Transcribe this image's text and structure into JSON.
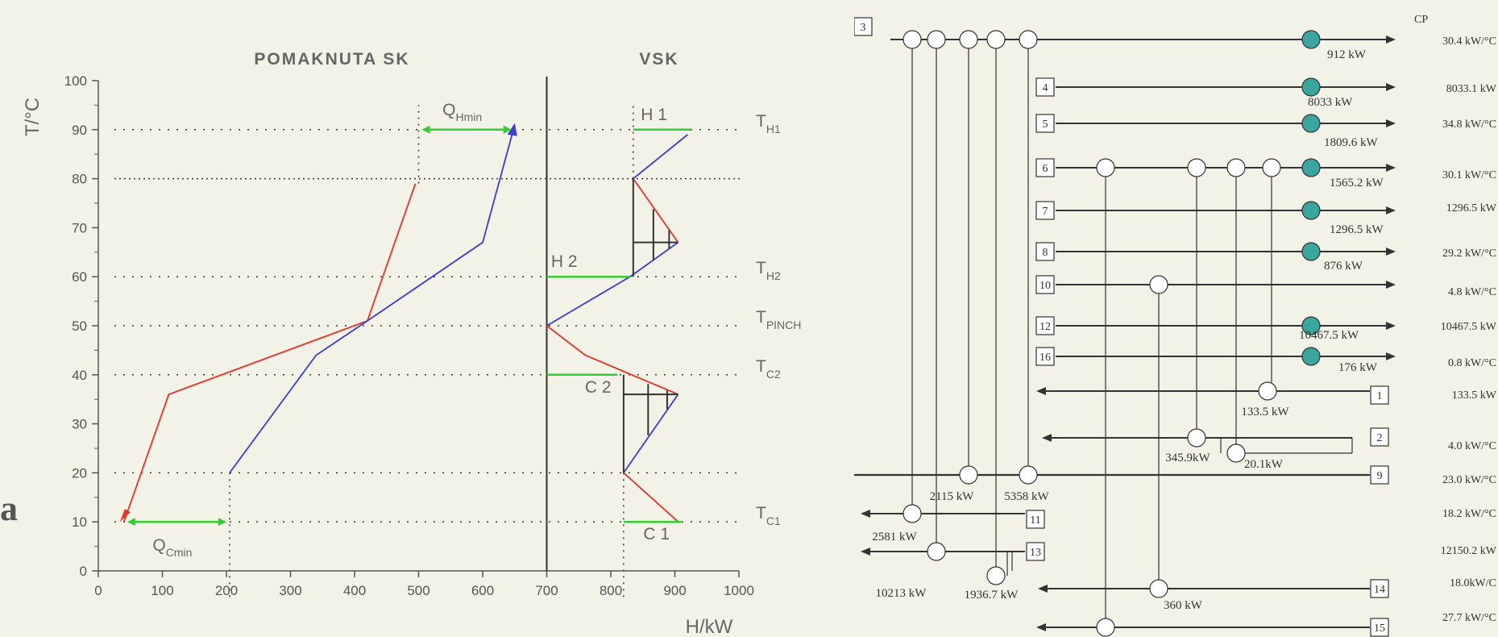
{
  "panel_letter": "a",
  "chart_data": {
    "type": "line",
    "xlabel": "H/kW",
    "ylabel": "T/°C",
    "xlim": [
      0,
      1000
    ],
    "ylim": [
      0,
      100
    ],
    "x_ticks": [
      0,
      100,
      200,
      300,
      400,
      500,
      600,
      700,
      800,
      900,
      1000
    ],
    "y_ticks": [
      0,
      10,
      20,
      30,
      40,
      50,
      60,
      70,
      80,
      90,
      100
    ],
    "section_titles": [
      "POMAKNUTA SK",
      "VSK"
    ],
    "horizontal_levels": [
      10,
      20,
      40,
      50,
      60,
      80,
      90
    ],
    "level_labels": [
      {
        "main": "T",
        "sub": "H1",
        "y": 90
      },
      {
        "main": "T",
        "sub": "H2",
        "y": 60
      },
      {
        "main": "T",
        "sub": "PINCH",
        "y": 50
      },
      {
        "main": "T",
        "sub": "C2",
        "y": 40
      },
      {
        "main": "T",
        "sub": "C1",
        "y": 10
      }
    ],
    "cold_composite": {
      "color": "#e8332a",
      "points": [
        [
          495,
          79
        ],
        [
          420,
          51
        ],
        [
          110,
          36
        ],
        [
          40,
          10
        ]
      ]
    },
    "hot_composite": {
      "color": "#3b3bd6",
      "points": [
        [
          205,
          20
        ],
        [
          340,
          44
        ],
        [
          420,
          51
        ],
        [
          600,
          67
        ],
        [
          650,
          91
        ]
      ]
    },
    "q_hmin": {
      "main": "Q",
      "sub": "Hmin",
      "x1": 500,
      "x2": 650,
      "y": 90
    },
    "q_cmin": {
      "main": "Q",
      "sub": "Cmin",
      "x1": 40,
      "x2": 205,
      "y": 10
    },
    "gcc": {
      "color_upper": "#e8332a",
      "color_lower": "#3b3bd6",
      "points": [
        [
          920,
          89
        ],
        [
          835,
          80
        ],
        [
          905,
          67
        ],
        [
          830,
          60
        ],
        [
          700,
          50
        ],
        [
          760,
          44
        ],
        [
          905,
          36
        ],
        [
          820,
          20
        ],
        [
          905,
          10
        ]
      ]
    },
    "utilities": [
      {
        "name": "H 1",
        "x1": 835,
        "x2": 925,
        "y": 90
      },
      {
        "name": "H 2",
        "x1": 700,
        "x2": 830,
        "y": 60
      },
      {
        "name": "C 2",
        "x1": 700,
        "x2": 810,
        "y": 40
      },
      {
        "name": "C 1",
        "x1": 820,
        "x2": 910,
        "y": 10
      }
    ]
  },
  "grid": {
    "cp_header": "CP",
    "hot_streams": [
      {
        "id": "3",
        "load": "912 kW",
        "cp": "30.4 kW/°C"
      },
      {
        "id": "4",
        "load": "8033 kW",
        "cp": "8033.1 kW"
      },
      {
        "id": "5",
        "load": "1809.6 kW",
        "cp": "34.8 kW/°C"
      },
      {
        "id": "6",
        "load": "1565.2 kW",
        "cp": "30.1 kW/°C"
      },
      {
        "id": "7",
        "load": "1296.5 kW",
        "cp": "1296.5 kW"
      },
      {
        "id": "8",
        "load": "876 kW",
        "cp": "29.2 kW/°C"
      },
      {
        "id": "10",
        "load": "",
        "cp": "4.8 kW/°C"
      },
      {
        "id": "12",
        "load": "10467.5 kW",
        "cp": "10467.5 kW"
      },
      {
        "id": "16",
        "load": "176 kW",
        "cp": "0.8 kW/°C"
      }
    ],
    "cold_streams": [
      {
        "id": "1",
        "cp": "133.5 kW"
      },
      {
        "id": "2",
        "cp": "4.0 kW/°C"
      },
      {
        "id": "9",
        "cp": "23.0 kW/°C"
      },
      {
        "id": "11",
        "cp": "18.2 kW/°C"
      },
      {
        "id": "13",
        "cp": "12150.2 kW"
      },
      {
        "id": "14",
        "cp": "18.0kW/C"
      },
      {
        "id": "15",
        "cp": "27.7 kW/°C"
      }
    ],
    "exchanger_loads": [
      "133.5 kW",
      "345.9kW",
      "20.1kW",
      "2115 kW",
      "5358 kW",
      "2581 kW",
      "10213 kW",
      "1936.7 kW",
      "360 kW"
    ],
    "colors": {
      "line": "#333333",
      "utility": "#3aa6a0"
    }
  }
}
